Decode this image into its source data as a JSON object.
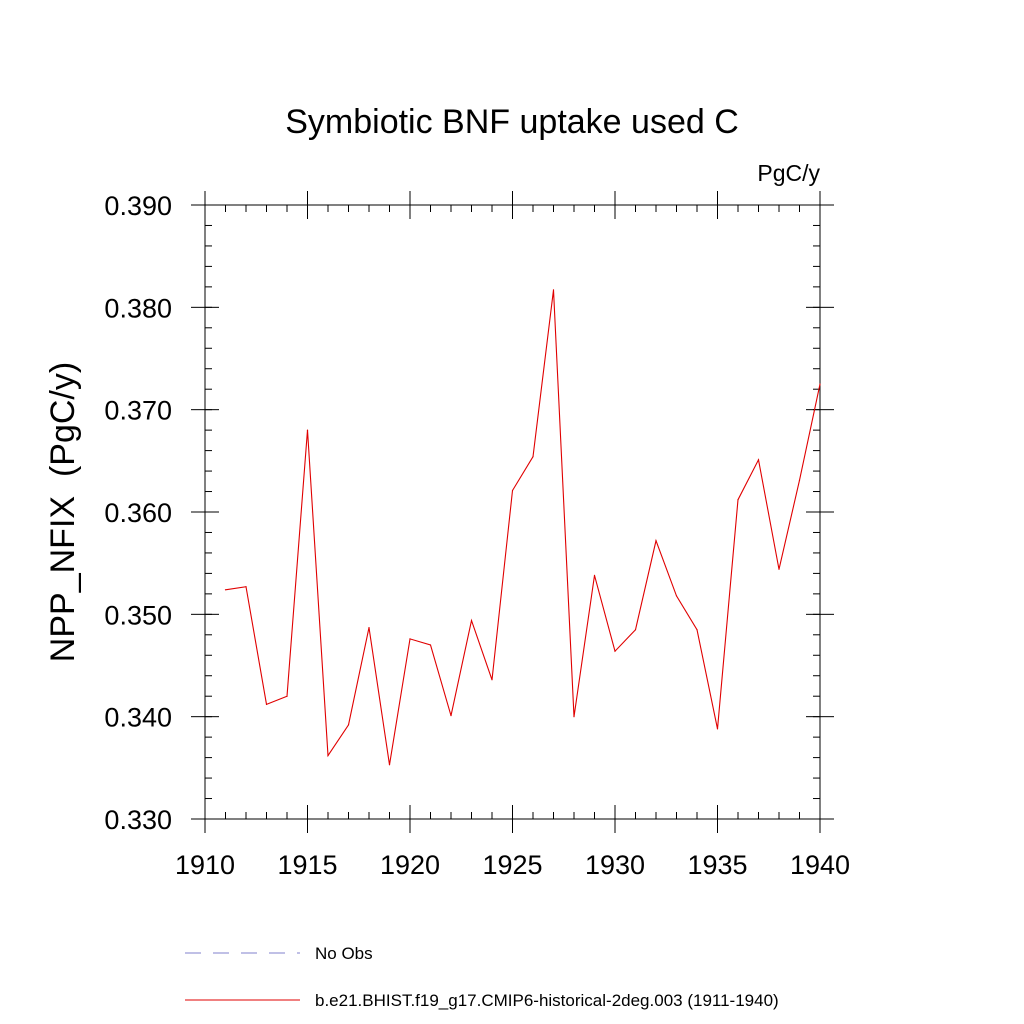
{
  "chart_data": {
    "type": "line",
    "title": "Symbiotic BNF uptake used C",
    "units": "PgC/y",
    "ylabel": "NPP_NFIX  (PgC/y)",
    "xlabel": "",
    "xlim": [
      1910,
      1940
    ],
    "ylim": [
      0.33,
      0.39
    ],
    "xticks": [
      1910,
      1915,
      1920,
      1925,
      1930,
      1935,
      1940
    ],
    "yticks": [
      0.33,
      0.34,
      0.35,
      0.36,
      0.37,
      0.38,
      0.39
    ],
    "ytick_labels": [
      "0.330",
      "0.340",
      "0.350",
      "0.360",
      "0.370",
      "0.380",
      "0.390"
    ],
    "grid": false,
    "legend_position": "bottom",
    "series": [
      {
        "name": "b.e21.BHIST.f19_g17.CMIP6-historical-2deg.003 (1911-1940)",
        "color": "#e00000",
        "style": "solid",
        "x": [
          1911,
          1912,
          1913,
          1914,
          1915,
          1916,
          1917,
          1918,
          1919,
          1920,
          1921,
          1922,
          1923,
          1924,
          1925,
          1926,
          1927,
          1928,
          1929,
          1930,
          1931,
          1932,
          1933,
          1934,
          1935,
          1936,
          1937,
          1938,
          1939,
          1940
        ],
        "y": [
          0.3524,
          0.3527,
          0.3412,
          0.342,
          0.368,
          0.3362,
          0.3392,
          0.3487,
          0.3353,
          0.3476,
          0.347,
          0.3401,
          0.3494,
          0.3436,
          0.3621,
          0.3654,
          0.3817,
          0.34,
          0.3538,
          0.3464,
          0.3485,
          0.3572,
          0.3518,
          0.3485,
          0.3388,
          0.3612,
          0.3651,
          0.3544,
          0.3631,
          0.3725
        ]
      }
    ],
    "legend": [
      {
        "label": "No Obs",
        "color": "#8080cc",
        "style": "dashed"
      },
      {
        "label": "b.e21.BHIST.f19_g17.CMIP6-historical-2deg.003 (1911-1940)",
        "color": "#e00000",
        "style": "solid"
      }
    ]
  }
}
